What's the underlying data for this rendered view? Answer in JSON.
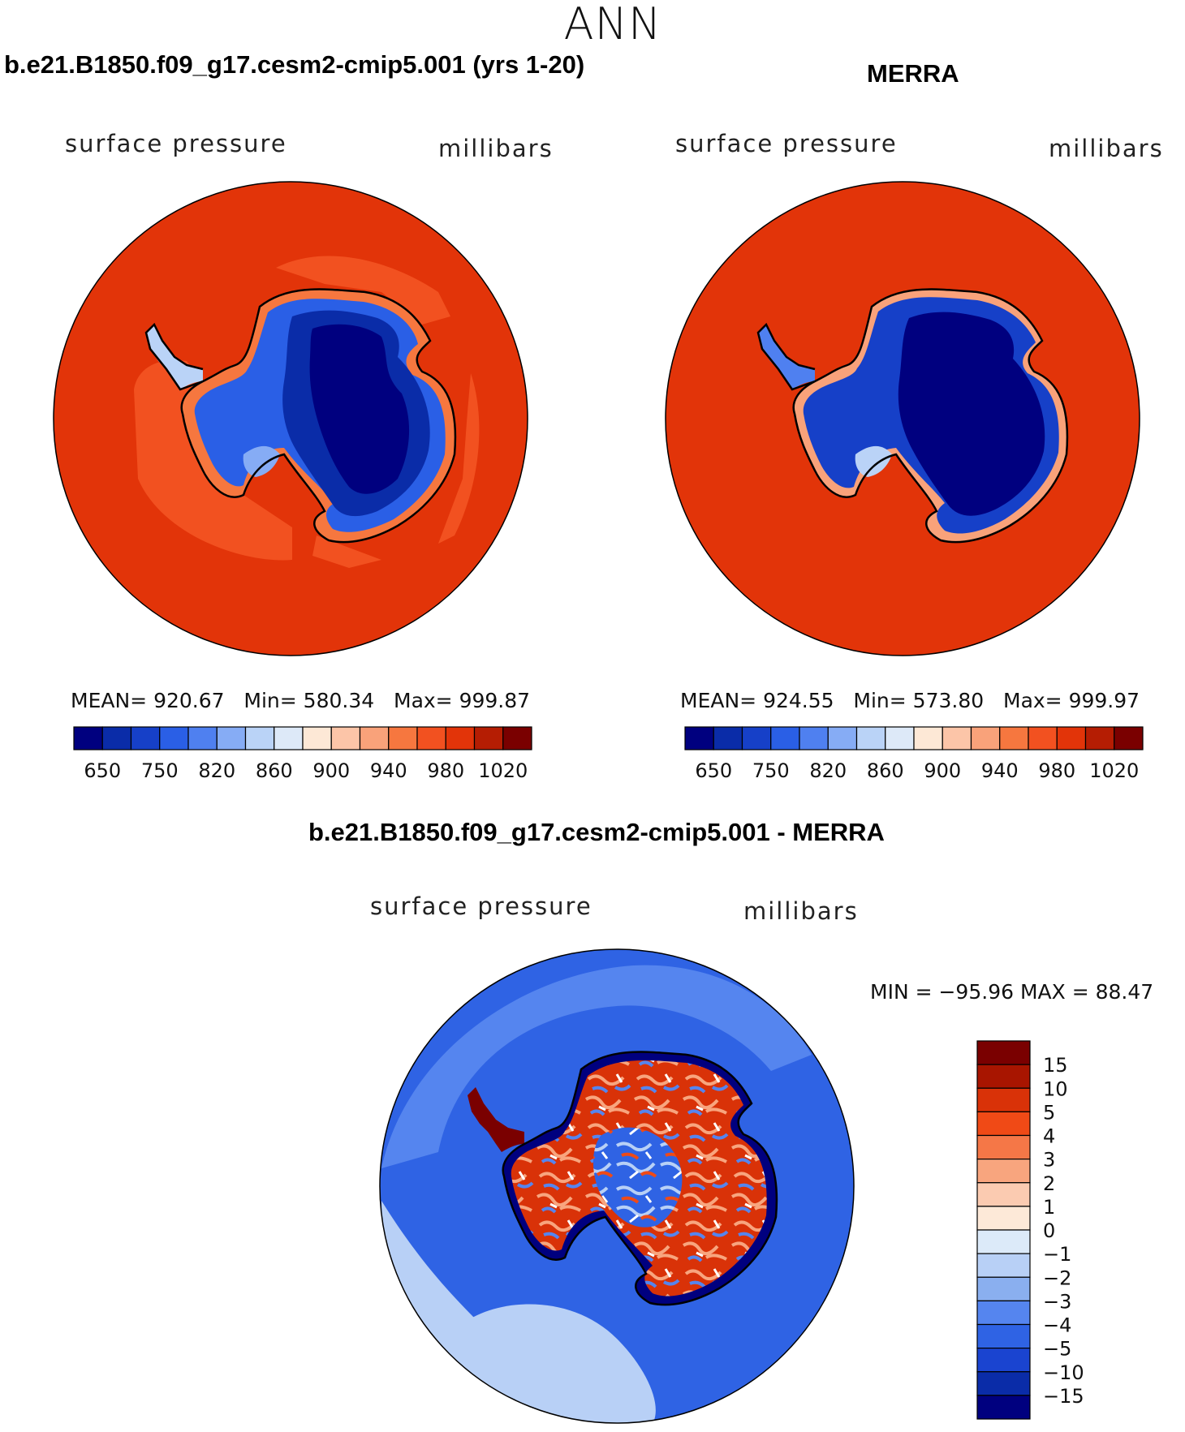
{
  "figure": {
    "season": "ANN",
    "variable_label": "surface pressure",
    "units_label": "millibars"
  },
  "colors": {
    "levels_abs": [
      "#00007f",
      "#0a2ca8",
      "#1640c8",
      "#2a5fe6",
      "#4f80f0",
      "#86acf5",
      "#bad3f7",
      "#dde9f8",
      "#fde8d6",
      "#fcc5a8",
      "#f9a27a",
      "#f6773f",
      "#f25120",
      "#e23409",
      "#b51d03",
      "#7a0000"
    ],
    "levels_diff": [
      "#00007f",
      "#0a2ca8",
      "#1a44d0",
      "#2f63e4",
      "#5585ef",
      "#8aafef",
      "#b8d0f6",
      "#dceaf9",
      "#fde9d8",
      "#fbcbb1",
      "#f8a57e",
      "#f57747",
      "#f04a16",
      "#d93208",
      "#a81500",
      "#7a0000"
    ],
    "ocean_model": "#e23409",
    "ocean_model_band": "#f25120",
    "ocean_obs": "#e23409",
    "diff_ocean": "#2f63e4",
    "diff_ocean_light": "#5585ef",
    "diff_ocean_pale": "#b8d0f6"
  },
  "chart_data": [
    {
      "type": "polar-contour-map",
      "panel": "model",
      "title": "b.e21.B1850.f09_g17.cesm2-cmip5.001 (yrs 1-20)",
      "subtitle_left": "surface pressure",
      "subtitle_right": "millibars",
      "stats": {
        "mean_label": "MEAN=",
        "mean": "920.67",
        "min_label": "Min=",
        "min": "580.34",
        "max_label": "Max=",
        "max": "999.87"
      },
      "colorbar_ticks": [
        "650",
        "750",
        "820",
        "860",
        "900",
        "940",
        "980",
        "1020"
      ]
    },
    {
      "type": "polar-contour-map",
      "panel": "obs",
      "title": "MERRA",
      "subtitle_left": "surface pressure",
      "subtitle_right": "millibars",
      "stats": {
        "mean_label": "MEAN=",
        "mean": "924.55",
        "min_label": "Min=",
        "min": "573.80",
        "max_label": "Max=",
        "max": "999.97"
      },
      "colorbar_ticks": [
        "650",
        "750",
        "820",
        "860",
        "900",
        "940",
        "980",
        "1020"
      ]
    },
    {
      "type": "polar-contour-map",
      "panel": "difference",
      "title": "b.e21.B1850.f09_g17.cesm2-cmip5.001 - MERRA",
      "subtitle_left": "surface pressure",
      "subtitle_right": "millibars",
      "range_text": "MIN = −95.96 MAX =   88.47",
      "colorbar_ticks": [
        "15",
        "10",
        "5",
        "4",
        "3",
        "2",
        "1",
        "0",
        "−1",
        "−2",
        "−3",
        "−4",
        "−5",
        "−10",
        "−15"
      ]
    }
  ]
}
